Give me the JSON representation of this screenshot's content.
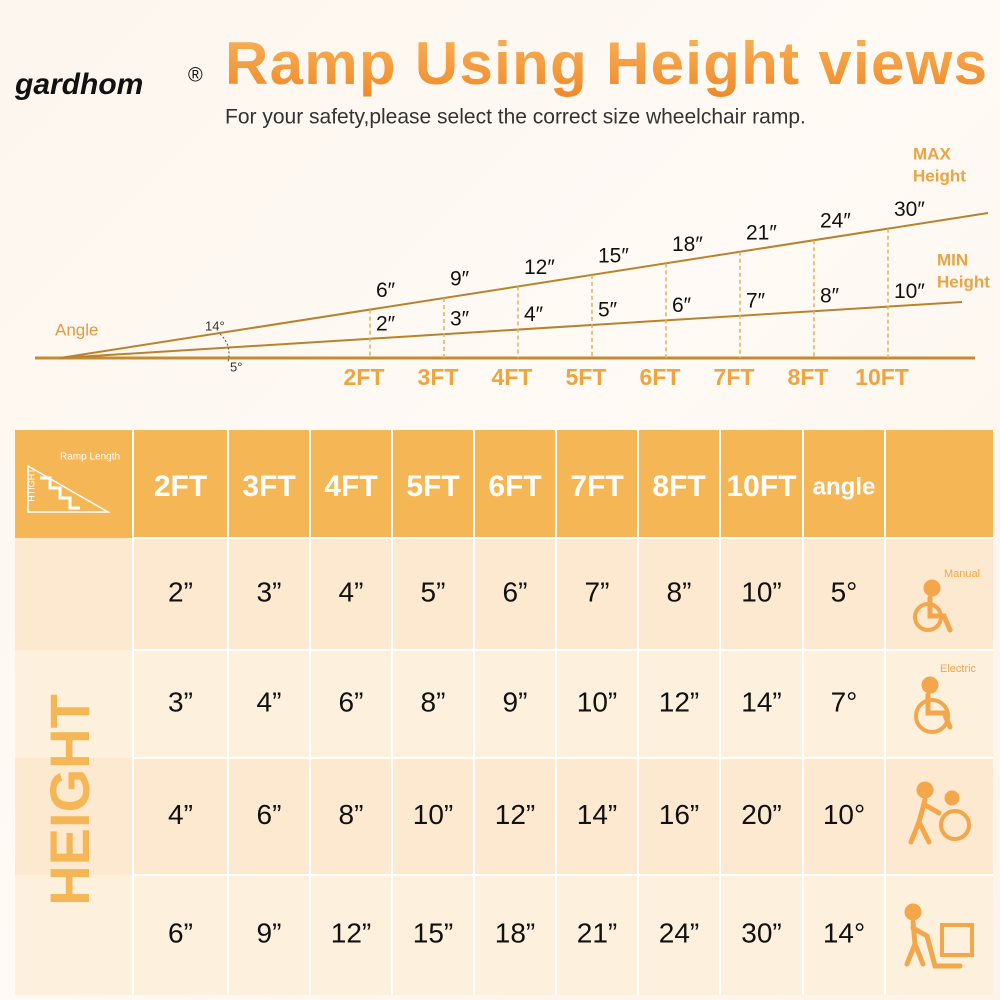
{
  "brand": {
    "name": "gardhom",
    "mark": "®"
  },
  "header": {
    "title": "Ramp Using Height views",
    "subtitle": "For your safety,please select the correct size wheelchair ramp."
  },
  "diagram": {
    "max_label": [
      "MAX",
      "Height"
    ],
    "min_label": [
      "MIN",
      "Height"
    ],
    "angle_label": "Angle",
    "angles": [
      "14°",
      "5°"
    ],
    "max_heights": [
      "6″",
      "9″",
      "12″",
      "15″",
      "18″",
      "21″",
      "24″",
      "30″"
    ],
    "min_heights": [
      "2″",
      "3″",
      "4″",
      "5″",
      "6″",
      "7″",
      "8″",
      "10″"
    ],
    "lengths": [
      "2FT",
      "3FT",
      "4FT",
      "5FT",
      "6FT",
      "7FT",
      "8FT",
      "10FT"
    ]
  },
  "table": {
    "corner": {
      "top": "Ramp Length",
      "side": "HTIGHT"
    },
    "header": [
      "2FT",
      "3FT",
      "4FT",
      "5FT",
      "6FT",
      "7FT",
      "8FT",
      "10FT",
      "angle"
    ],
    "side_label": "HEIGHT",
    "rows": [
      [
        "2”",
        "3”",
        "4”",
        "5”",
        "6”",
        "7”",
        "8”",
        "10”",
        "5°"
      ],
      [
        "3”",
        "4”",
        "6”",
        "8”",
        "9”",
        "10”",
        "12”",
        "14”",
        "7°"
      ],
      [
        "4”",
        "6”",
        "8”",
        "10”",
        "12”",
        "14”",
        "16”",
        "20”",
        "10°"
      ],
      [
        "6”",
        "9”",
        "12”",
        "15”",
        "18”",
        "21”",
        "24”",
        "30”",
        "14°"
      ]
    ],
    "icon_labels": [
      "Manual",
      "Electric"
    ]
  }
}
